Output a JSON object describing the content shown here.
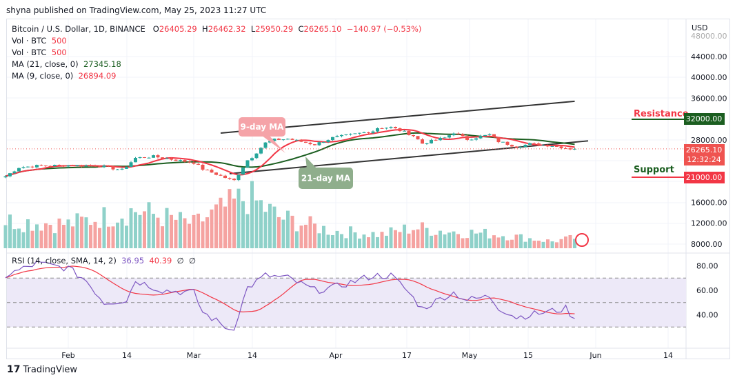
{
  "header": {
    "published": "shyna published on TradingView.com, May 25, 2023 11:27 UTC"
  },
  "legend": {
    "symbol": "Bitcoin / U.S. Dollar, 1D, BINANCE",
    "o_label": "O",
    "o": "26405.29",
    "h_label": "H",
    "h": "26462.32",
    "l_label": "L",
    "l": "25950.29",
    "c_label": "C",
    "c": "26265.10",
    "change": "−140.97 (−0.53%)",
    "vol1_label": "Vol · BTC",
    "vol1": "500",
    "vol2_label": "Vol · BTC",
    "vol2": "500",
    "ma21_label": "MA (21, close, 0)",
    "ma21": "27345.18",
    "ma9_label": "MA (9, close, 0)",
    "ma9": "26894.09",
    "rsi_label": "RSI (14, close, SMA, 14, 2)",
    "rsi": "36.95",
    "rsi_sma": "40.39",
    "rsi_extra1": "∅",
    "rsi_extra2": "∅"
  },
  "annotations": {
    "ma9_label": "9-day MA",
    "ma21_label": "21-day MA",
    "resistance": "Resistance",
    "resistance_price": "32000.00",
    "support": "Support",
    "support_price": "21000.00",
    "last_price": "26265.10",
    "countdown": "12:32:24"
  },
  "colors": {
    "up": "#26a69a",
    "down": "#ef5350",
    "ma9": "#f23645",
    "ma21": "#1b5e20",
    "rsi": "#7e57c2",
    "rsi_sma": "#f23645",
    "channel": "#333333"
  },
  "chart_data": {
    "type": "candlestick",
    "currency": "USD",
    "price_ticks": [
      "48000.00",
      "44000.00",
      "40000.00",
      "36000.00",
      "28000.00",
      "16000.00",
      "12000.00",
      "8000.00"
    ],
    "time_ticks": [
      "Feb",
      "14",
      "Mar",
      "14",
      "Apr",
      "17",
      "May",
      "15",
      "Jun",
      "14"
    ],
    "close_keypoints": [
      [
        "2023-01-18",
        21000
      ],
      [
        "2023-01-21",
        22700
      ],
      [
        "2023-01-25",
        23000
      ],
      [
        "2023-02-01",
        23100
      ],
      [
        "2023-02-08",
        23000
      ],
      [
        "2023-02-13",
        22200
      ],
      [
        "2023-02-16",
        24500
      ],
      [
        "2023-02-20",
        24800
      ],
      [
        "2023-03-01",
        23600
      ],
      [
        "2023-03-03",
        22400
      ],
      [
        "2023-03-09",
        20400
      ],
      [
        "2023-03-10",
        20200
      ],
      [
        "2023-03-13",
        24100
      ],
      [
        "2023-03-14",
        24700
      ],
      [
        "2023-03-17",
        27400
      ],
      [
        "2023-03-19",
        28000
      ],
      [
        "2023-03-22",
        28200
      ],
      [
        "2023-03-28",
        27100
      ],
      [
        "2023-04-01",
        28400
      ],
      [
        "2023-04-10",
        29700
      ],
      [
        "2023-04-11",
        30300
      ],
      [
        "2023-04-14",
        30400
      ],
      [
        "2023-04-17",
        29500
      ],
      [
        "2023-04-19",
        28800
      ],
      [
        "2023-04-21",
        27300
      ],
      [
        "2023-04-26",
        28400
      ],
      [
        "2023-04-28",
        29400
      ],
      [
        "2023-05-01",
        28100
      ],
      [
        "2023-05-06",
        29000
      ],
      [
        "2023-05-08",
        27700
      ],
      [
        "2023-05-12",
        26700
      ],
      [
        "2023-05-15",
        27200
      ],
      [
        "2023-05-20",
        26900
      ],
      [
        "2023-05-24",
        26300
      ],
      [
        "2023-05-25",
        26265.1
      ]
    ],
    "volume_keypoints": [
      [
        "2023-01-18",
        8
      ],
      [
        "2023-02-01",
        7
      ],
      [
        "2023-02-16",
        11
      ],
      [
        "2023-03-01",
        7
      ],
      [
        "2023-03-10",
        13
      ],
      [
        "2023-03-13",
        15
      ],
      [
        "2023-03-20",
        9
      ],
      [
        "2023-04-01",
        5
      ],
      [
        "2023-04-12",
        4
      ],
      [
        "2023-04-19",
        6
      ],
      [
        "2023-04-26",
        5
      ],
      [
        "2023-05-08",
        4
      ],
      [
        "2023-05-20",
        2
      ],
      [
        "2023-05-25",
        3
      ]
    ],
    "rsi_ticks": [
      "80.00",
      "60.00",
      "40.00"
    ],
    "rsi_band": [
      30,
      70
    ],
    "rsi_keypoints": [
      [
        "2023-01-18",
        72
      ],
      [
        "2023-01-25",
        82
      ],
      [
        "2023-02-01",
        78
      ],
      [
        "2023-02-05",
        68
      ],
      [
        "2023-02-09",
        50
      ],
      [
        "2023-02-14",
        52
      ],
      [
        "2023-02-16",
        68
      ],
      [
        "2023-02-22",
        60
      ],
      [
        "2023-03-01",
        58
      ],
      [
        "2023-03-03",
        42
      ],
      [
        "2023-03-09",
        28
      ],
      [
        "2023-03-10",
        30
      ],
      [
        "2023-03-13",
        62
      ],
      [
        "2023-03-17",
        72
      ],
      [
        "2023-03-22",
        70
      ],
      [
        "2023-03-28",
        60
      ],
      [
        "2023-04-01",
        62
      ],
      [
        "2023-04-10",
        72
      ],
      [
        "2023-04-14",
        72
      ],
      [
        "2023-04-17",
        62
      ],
      [
        "2023-04-21",
        45
      ],
      [
        "2023-04-26",
        55
      ],
      [
        "2023-04-28",
        58
      ],
      [
        "2023-05-01",
        52
      ],
      [
        "2023-05-06",
        55
      ],
      [
        "2023-05-08",
        46
      ],
      [
        "2023-05-12",
        38
      ],
      [
        "2023-05-15",
        40
      ],
      [
        "2023-05-20",
        43
      ],
      [
        "2023-05-23",
        45
      ],
      [
        "2023-05-25",
        36.95
      ]
    ],
    "channel": {
      "upper": [
        [
          "2023-03-07",
          29300
        ],
        [
          "2023-05-25",
          35400
        ]
      ],
      "lower": [
        [
          "2023-03-09",
          21500
        ],
        [
          "2023-05-28",
          27800
        ]
      ]
    },
    "resistance": 32000,
    "support": 21000
  },
  "footer": {
    "brand": "TradingView"
  }
}
